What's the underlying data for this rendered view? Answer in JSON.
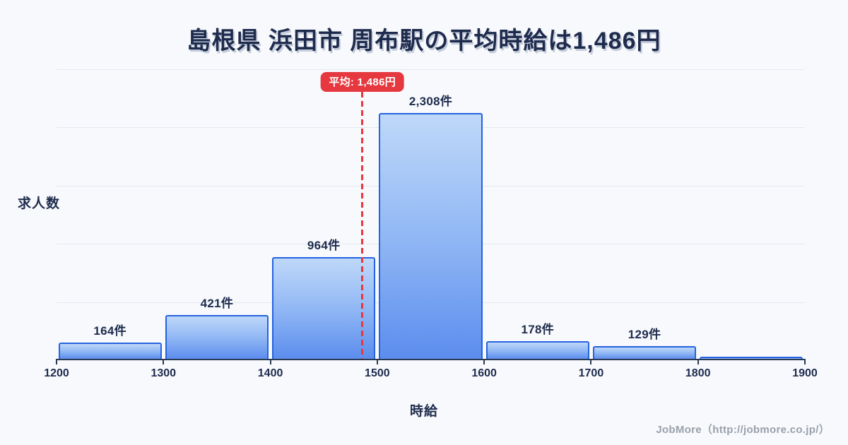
{
  "title": {
    "text": "島根県 浜田市 周布駅の平均時給は1,486円"
  },
  "chart_data": {
    "type": "bar",
    "kind": "histogram",
    "title": "島根県 浜田市 周布駅の平均時給は1,486円",
    "xlabel": "時給",
    "ylabel": "求人数",
    "x_range": [
      1200,
      1900
    ],
    "bin_size": 100,
    "x_ticks": [
      "1200",
      "1300",
      "1400",
      "1500",
      "1600",
      "1700",
      "1800",
      "1900"
    ],
    "grid": true,
    "gridline_count": 5,
    "legend_position": "none",
    "bars": [
      {
        "bin": "1200-1300",
        "value": 164,
        "label": "164件"
      },
      {
        "bin": "1300-1400",
        "value": 421,
        "label": "421件"
      },
      {
        "bin": "1400-1500",
        "value": 964,
        "label": "964件"
      },
      {
        "bin": "1500-1600",
        "value": 2308,
        "label": "2,308件"
      },
      {
        "bin": "1600-1700",
        "value": 178,
        "label": "178件"
      },
      {
        "bin": "1700-1800",
        "value": 129,
        "label": "129件"
      },
      {
        "bin": "1800-1900",
        "value": 30,
        "label": ""
      }
    ],
    "average": {
      "value": 1486,
      "label": "平均: 1,486円"
    }
  },
  "footer": {
    "text": "JobMore（http://jobmore.co.jp/）"
  },
  "colors": {
    "background": "#f7f9fc",
    "text_navy": "#1e2b4d",
    "bar_border": "#2563e0",
    "bar_fill_top": "#bfd8f9",
    "bar_fill_mid": "#8fb6f4",
    "bar_fill_bottom": "#5c8dee",
    "average_red": "#e5383f",
    "gridline": "#e3e9f2",
    "axis_line": "#2b3a55",
    "footer_gray": "#9aa1ab"
  }
}
